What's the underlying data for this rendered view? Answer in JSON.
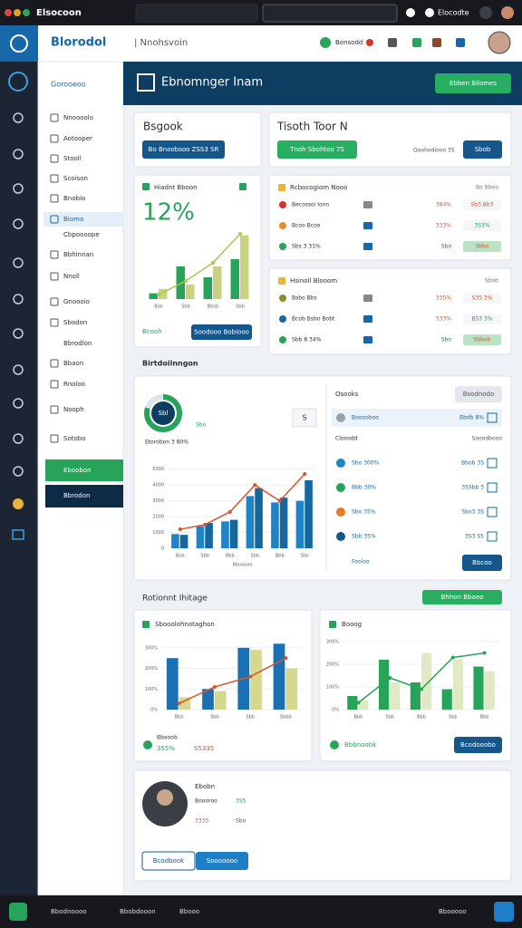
{
  "topbar": {
    "app": "Elsocoon",
    "user": "Elocodte"
  },
  "header": {
    "title": "Blorodol",
    "subtitle": "| Nnohsvoin",
    "badge": "Bonsodd"
  },
  "sidebar": {
    "select": "Gorooeoo",
    "items": [
      "Nnoooolo",
      "Aotooper",
      "Stooll",
      "Scoison",
      "Bnobio",
      "Bioma",
      "Cbpoooope",
      "Bbhinnan",
      "Nnoll",
      "Gnoooio",
      "Sbodon",
      "Bbrodlon",
      "Bbaon",
      "Rnoloo",
      "Nooph",
      "Sotobo"
    ],
    "active": "Eboobon",
    "secondary": "Bbrodon"
  },
  "banner": {
    "title": "Ebnomnger Inam",
    "button": "Ebben Bilomes"
  },
  "booking": {
    "title": "Bsgook",
    "button": "Bo Bnoobsoo ZSS3 SR"
  },
  "finish": {
    "title": "Tisoth Toor N",
    "button": "Tnoh Sbohtoo 7S",
    "note": "Qoohodiooo 3S",
    "action": "Sbob"
  },
  "kpi": {
    "title": "Hiadnt Bboon",
    "value": "12%",
    "footer": "Bcooh",
    "button": "Soodooo Bobiooo",
    "chart": {
      "categories": [
        "Bsb",
        "Sbb",
        "Bbsb",
        "Sbb"
      ],
      "ylim": [
        0,
        100
      ],
      "series": [
        {
          "color": "#27a35a",
          "values": [
            8,
            45,
            30,
            55
          ]
        },
        {
          "color": "#c9d27e",
          "values": [
            14,
            20,
            45,
            88
          ]
        }
      ],
      "line": {
        "color": "#a6c94e",
        "values": [
          6,
          25,
          50,
          90
        ]
      }
    }
  },
  "recognition": {
    "title": "Rcbocogiom Nooo",
    "action": "Bo Bboo",
    "rows": [
      {
        "name": "Becossoi Ionn",
        "value": "384%",
        "badge": "Sb3 Bb3"
      },
      {
        "name": "Bcoo Bcoo",
        "value": "333%",
        "badge": "3S3%"
      },
      {
        "name": "Sbs 3 31%",
        "value": "Sbo",
        "badge": "Sbbo"
      }
    ]
  },
  "install": {
    "title": "Hsinoll Blooom",
    "action": "Sbob",
    "rows": [
      {
        "name": "Bsbo Bbs",
        "value": "335%",
        "badge": "S35 3%"
      },
      {
        "name": "Bcob Bsbo Bobt",
        "value": "533%",
        "badge": "BS3 3%"
      },
      {
        "name": "Sbb 8 34%",
        "value": "Sbo",
        "badge": "Sbbob"
      }
    ]
  },
  "overview": {
    "title": "Birtdoilnngon",
    "donut": {
      "value": 80,
      "center": "Sbl",
      "tag": "Sbo",
      "label": "Etorobon 3 80%"
    },
    "select": "S",
    "chart": {
      "categories": [
        "Bob",
        "Sbb",
        "Bbb",
        "Sbb",
        "Bbb",
        "Sbs"
      ],
      "ylim": [
        0,
        5500
      ],
      "yticks": [
        0,
        1000,
        2000,
        3000,
        4000,
        5000
      ],
      "series": [
        {
          "color": "#1f84c6",
          "values": [
            900,
            1400,
            1700,
            3300,
            2900,
            3000
          ]
        },
        {
          "color": "#16679e",
          "values": [
            850,
            1600,
            1800,
            3800,
            3200,
            4300
          ]
        }
      ],
      "line": {
        "color": "#d9532c",
        "values": [
          1200,
          1500,
          2300,
          4000,
          3000,
          4700
        ]
      },
      "caption": "Bbooooo"
    },
    "panel": {
      "title": "Osooks",
      "button": "Bsodnodo",
      "subtitle": "Clooodd",
      "subnote": "Sooodbooo",
      "rows": [
        {
          "name": "Booooboo",
          "value": "Bbdb 8%"
        },
        {
          "name": "Sbo 300%",
          "value": "Bbob 3S"
        },
        {
          "name": "Bbb 30%",
          "value": "3SSbb 3"
        },
        {
          "name": "Sbo 35%",
          "value": "Sbo3 3S"
        },
        {
          "name": "Sbb 35%",
          "value": "3S3 S5"
        }
      ],
      "footer": "Fooloo",
      "action": "Bbcoo"
    }
  },
  "recent": {
    "title": "Rotionnt Ihitage",
    "button": "Bhhon Bbaeo"
  },
  "left_chart": {
    "title": "Sbooolohnotaghon",
    "chart": {
      "categories": [
        "Bbb",
        "Sbb",
        "Sbb",
        "Sbbb"
      ],
      "ylim": [
        0,
        330
      ],
      "yticks": [
        {
          "value": 0,
          "label": "0%"
        },
        {
          "value": 100,
          "label": "100%"
        },
        {
          "value": 200,
          "label": "200%"
        },
        {
          "value": 300,
          "label": "300%"
        }
      ],
      "series": [
        {
          "color": "#1a70b0",
          "values": [
            250,
            100,
            300,
            320
          ]
        },
        {
          "color": "#d4d98f",
          "values": [
            60,
            90,
            290,
            200
          ]
        }
      ],
      "line": {
        "color": "#d9532c",
        "values": [
          30,
          110,
          160,
          250
        ]
      }
    },
    "footer_label": "Bbaoob",
    "footer_value": "355%",
    "footer_alt": "S5335"
  },
  "right_chart": {
    "title": "Booog",
    "chart": {
      "categories": [
        "Bbb",
        "Sbb",
        "Bbb",
        "Sbb",
        "Bbb"
      ],
      "ylim": [
        0,
        300
      ],
      "yticks": [
        {
          "value": 0,
          "label": "0%"
        },
        {
          "value": 100,
          "label": "100%"
        },
        {
          "value": 200,
          "label": "200%"
        },
        {
          "value": 300,
          "label": "300%"
        }
      ],
      "series": [
        {
          "color": "#27a35a",
          "values": [
            60,
            220,
            120,
            90,
            190
          ]
        },
        {
          "color": "#dfe9c4",
          "values": [
            40,
            120,
            250,
            220,
            170
          ]
        }
      ],
      "line": {
        "color": "#27a35a",
        "values": [
          30,
          140,
          90,
          230,
          250
        ]
      }
    },
    "footer": "Bbbnoobk",
    "button": "Bcodooobo"
  },
  "profile": {
    "name": "Ebobn",
    "rows": [
      {
        "label": "Boooroo",
        "value": "3S5"
      },
      {
        "label": "3335",
        "value": "Sbo"
      }
    ],
    "buttons": [
      "Bcodbook",
      "Sooooooo"
    ]
  },
  "bottombar": {
    "left": [
      "Bbodnoooo",
      "Bbobdooon",
      "Bbooo"
    ],
    "right": "Bbooooo"
  }
}
